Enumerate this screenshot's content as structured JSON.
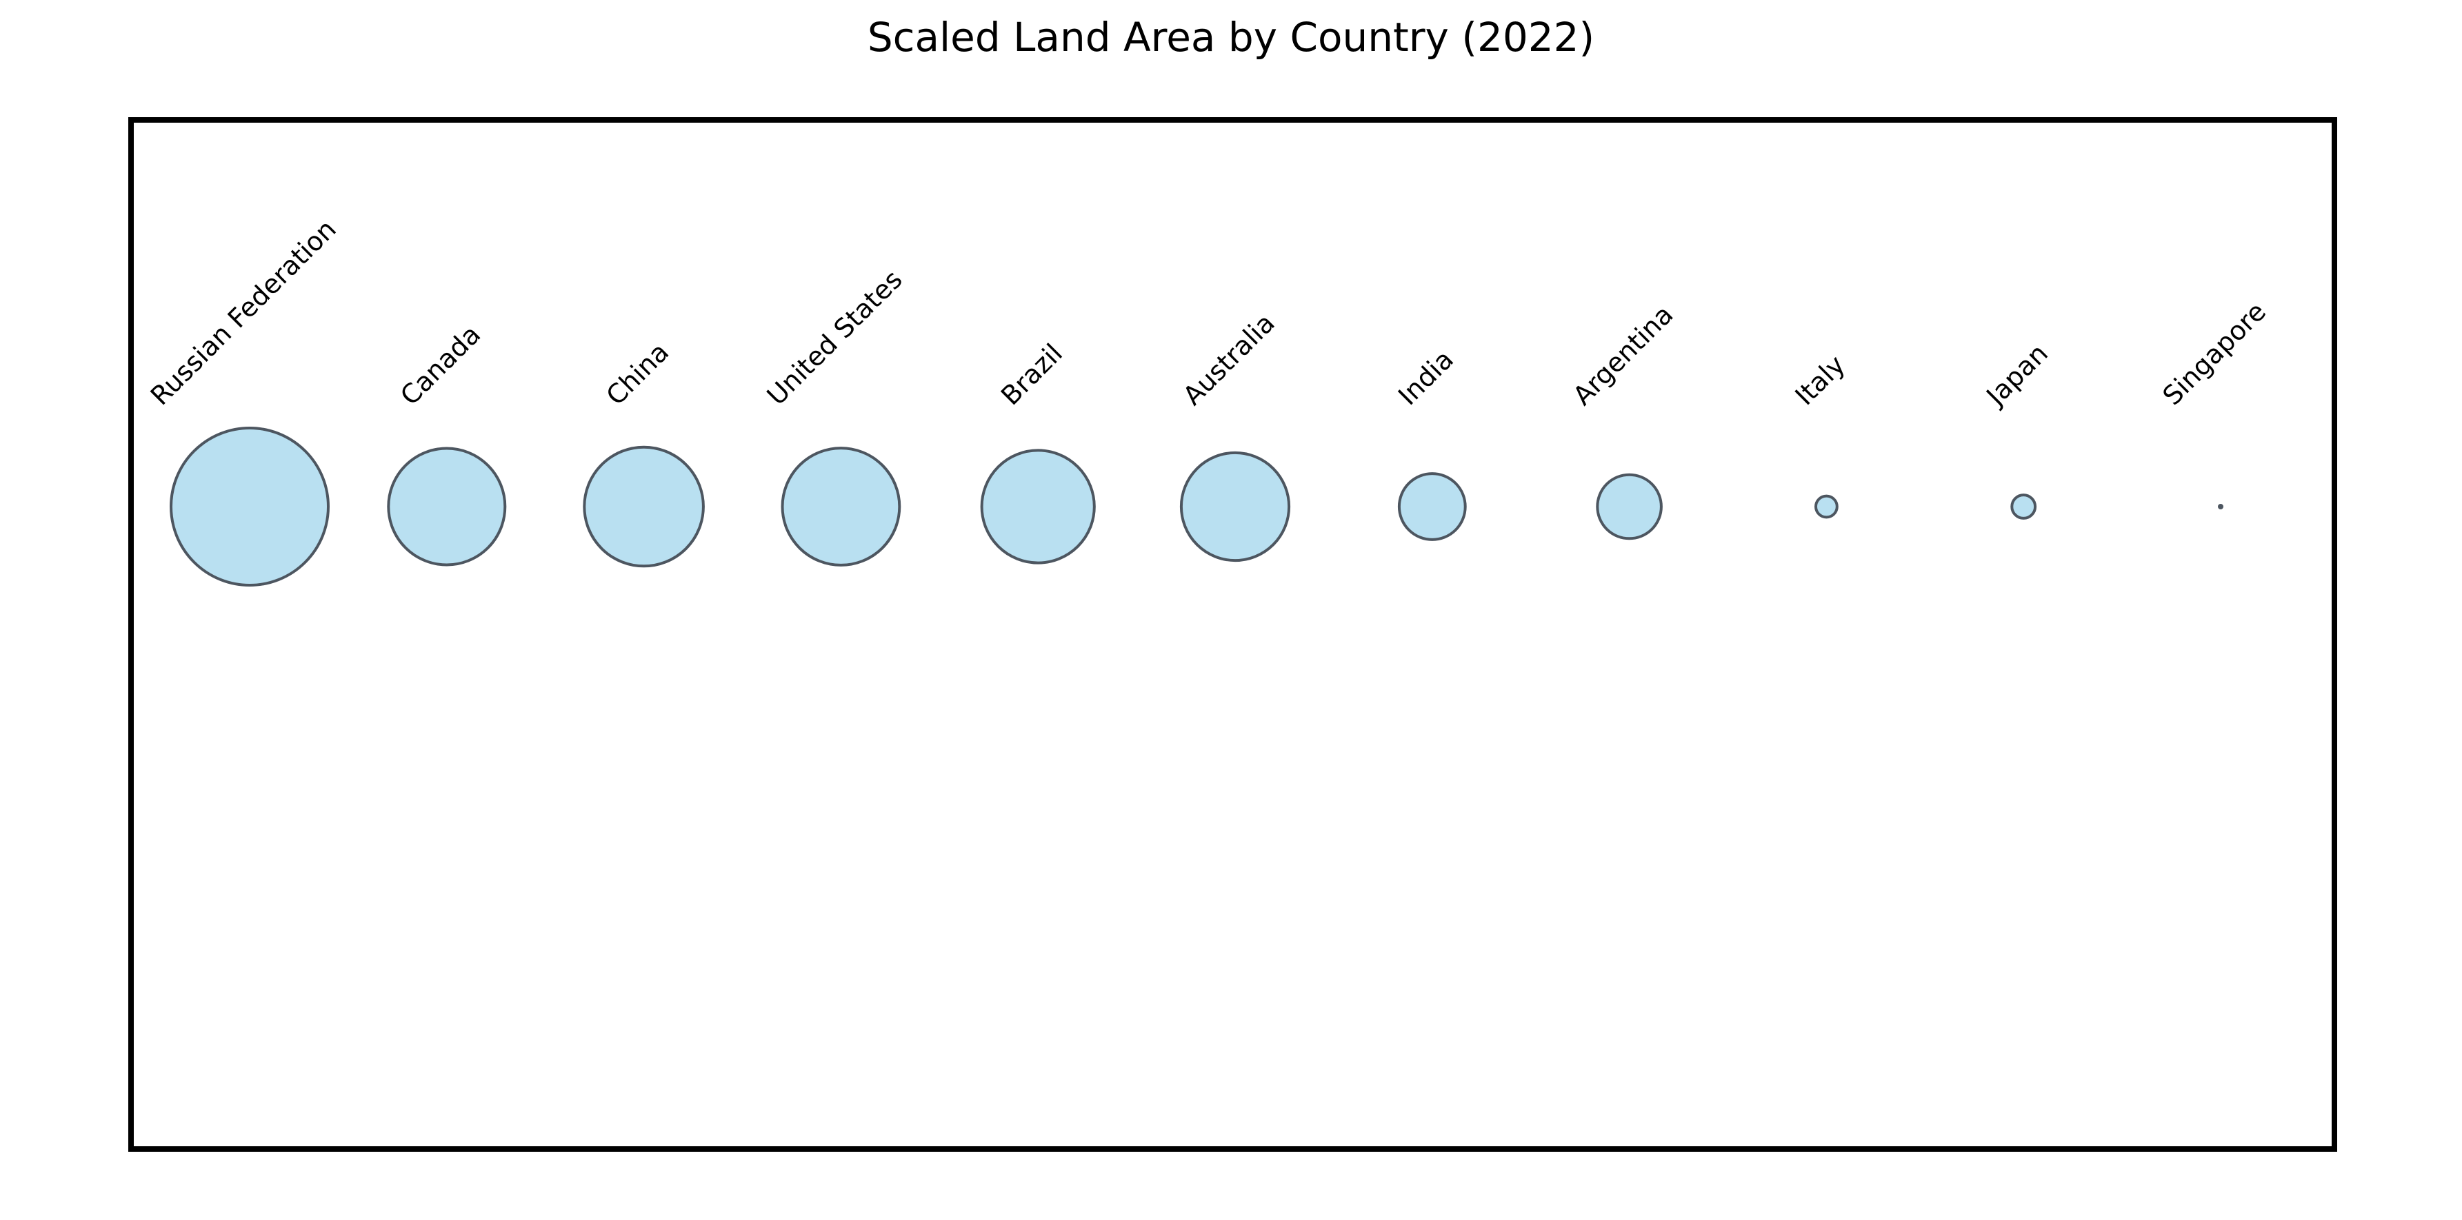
{
  "chart_data": {
    "type": "scatter",
    "title": "Scaled Land Area by Country (2022)",
    "xlabel": "",
    "ylabel": "",
    "grid": false,
    "legend": "none",
    "encoding": "bubble area proportional to land area",
    "colors": {
      "fill": "#b9e0f1",
      "edge": "#4d5660",
      "frame": "#000000"
    },
    "categories": [
      "Russian Federation",
      "Canada",
      "China",
      "United States",
      "Brazil",
      "Australia",
      "India",
      "Argentina",
      "Italy",
      "Japan",
      "Singapore"
    ],
    "values": [
      16.4,
      9.0,
      9.4,
      9.1,
      8.4,
      7.7,
      2.9,
      2.7,
      0.3,
      0.36,
      0.0007
    ]
  }
}
